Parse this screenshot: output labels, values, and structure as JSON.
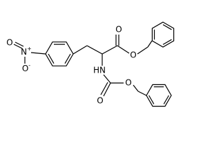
{
  "atoms": [
    {
      "label": "O"
    },
    {
      "label": "N",
      "charge": "+"
    },
    {
      "label": "O",
      "charge": "-"
    },
    {
      "label": "O"
    },
    {
      "label": "O"
    },
    {
      "label": "HN"
    },
    {
      "label": "O"
    },
    {
      "label": "O"
    }
  ]
}
